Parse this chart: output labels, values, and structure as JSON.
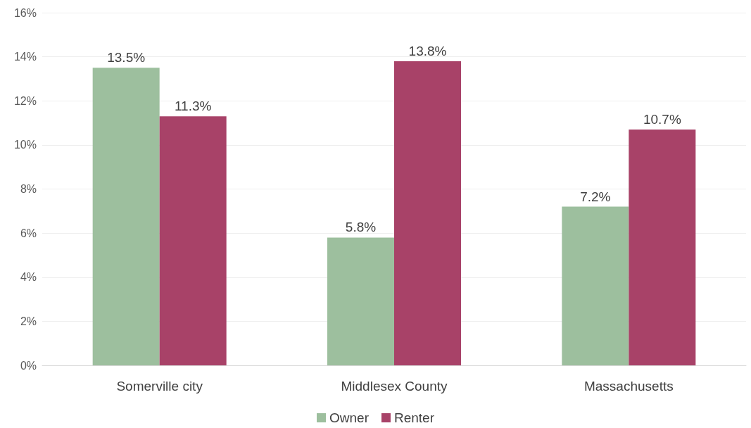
{
  "chart_data": {
    "type": "bar",
    "categories": [
      "Somerville city",
      "Middlesex County",
      "Massachusetts"
    ],
    "series": [
      {
        "name": "Owner",
        "color": "#9dbf9e",
        "values": [
          13.5,
          5.8,
          7.2
        ],
        "value_labels": [
          "13.5%",
          "5.8%",
          "7.2%"
        ]
      },
      {
        "name": "Renter",
        "color": "#a84268",
        "values": [
          11.3,
          13.8,
          10.7
        ],
        "value_labels": [
          "11.3%",
          "13.8%",
          "10.7%"
        ]
      }
    ],
    "ylim": [
      0,
      16
    ],
    "yticks": [
      {
        "value": 0,
        "label": "0%"
      },
      {
        "value": 2,
        "label": "2%"
      },
      {
        "value": 4,
        "label": "4%"
      },
      {
        "value": 6,
        "label": "6%"
      },
      {
        "value": 8,
        "label": "8%"
      },
      {
        "value": 10,
        "label": "10%"
      },
      {
        "value": 12,
        "label": "12%"
      },
      {
        "value": 14,
        "label": "14%"
      },
      {
        "value": 16,
        "label": "16%"
      }
    ],
    "grid": "y",
    "legend": "bottom"
  }
}
